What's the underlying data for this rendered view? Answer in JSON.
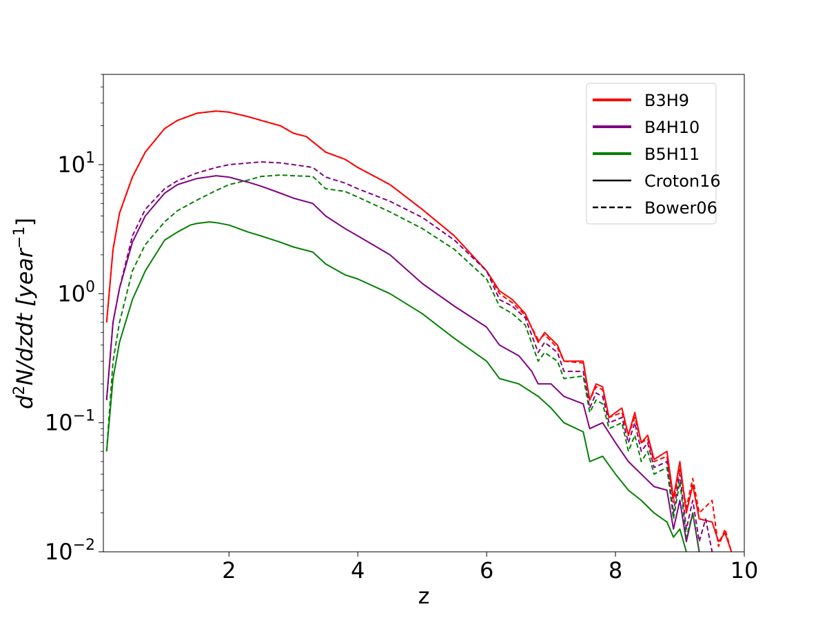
{
  "chart_data": {
    "type": "line",
    "title": "",
    "xlabel": "z",
    "ylabel": "d²N/dzdt [year⁻¹]",
    "ylabel_parts": {
      "d": "d",
      "sup2": "2",
      "mid": "N/dzdt [year",
      "sup": "−1",
      "close": "]"
    },
    "xlim": [
      0.05,
      10
    ],
    "ylim": [
      0.01,
      50
    ],
    "y_scale": "log",
    "grid": false,
    "legend_position": "top-right",
    "x_ticks": [
      {
        "value": 2,
        "label": "2"
      },
      {
        "value": 4,
        "label": "4"
      },
      {
        "value": 6,
        "label": "6"
      },
      {
        "value": 8,
        "label": "8"
      },
      {
        "value": 10,
        "label": "10"
      }
    ],
    "y_ticks": [
      {
        "value": 0.01,
        "base": "10",
        "exp": "−2"
      },
      {
        "value": 0.1,
        "base": "10",
        "exp": "−1"
      },
      {
        "value": 1,
        "base": "10",
        "exp": "0"
      },
      {
        "value": 10,
        "base": "10",
        "exp": "1"
      }
    ],
    "legend": [
      {
        "label": "B3H9",
        "color": "#ff0000",
        "style": "solid",
        "kind": "color"
      },
      {
        "label": "B4H10",
        "color": "#800080",
        "style": "solid",
        "kind": "color"
      },
      {
        "label": "B5H11",
        "color": "#008000",
        "style": "solid",
        "kind": "color"
      },
      {
        "label": "Croton16",
        "color": "#000000",
        "style": "solid",
        "kind": "style"
      },
      {
        "label": "Bower06",
        "color": "#000000",
        "style": "dashed",
        "kind": "style"
      }
    ],
    "series": [
      {
        "model": "B3H9",
        "variant": "Croton16",
        "color": "#ff0000",
        "style": "solid",
        "points": [
          [
            0.1,
            0.6
          ],
          [
            0.2,
            2.2
          ],
          [
            0.3,
            4.2
          ],
          [
            0.5,
            8.0
          ],
          [
            0.7,
            12.5
          ],
          [
            1.0,
            19.0
          ],
          [
            1.2,
            22.0
          ],
          [
            1.5,
            25.0
          ],
          [
            1.8,
            26.0
          ],
          [
            2.0,
            25.5
          ],
          [
            2.3,
            23.5
          ],
          [
            2.5,
            22.0
          ],
          [
            2.8,
            20.0
          ],
          [
            3.0,
            17.5
          ],
          [
            3.2,
            16.5
          ],
          [
            3.5,
            12.5
          ],
          [
            3.8,
            11.0
          ],
          [
            4.0,
            9.5
          ],
          [
            4.5,
            7.0
          ],
          [
            5.0,
            4.5
          ],
          [
            5.5,
            2.8
          ],
          [
            6.0,
            1.5
          ],
          [
            6.2,
            1.05
          ],
          [
            6.4,
            0.9
          ],
          [
            6.6,
            0.7
          ],
          [
            6.8,
            0.42
          ],
          [
            6.9,
            0.5
          ],
          [
            7.1,
            0.4
          ],
          [
            7.2,
            0.3
          ],
          [
            7.5,
            0.3
          ],
          [
            7.6,
            0.15
          ],
          [
            7.7,
            0.2
          ],
          [
            7.8,
            0.19
          ],
          [
            7.9,
            0.11
          ],
          [
            8.1,
            0.13
          ],
          [
            8.2,
            0.08
          ],
          [
            8.3,
            0.12
          ],
          [
            8.4,
            0.07
          ],
          [
            8.5,
            0.08
          ],
          [
            8.6,
            0.052
          ],
          [
            8.8,
            0.06
          ],
          [
            8.9,
            0.026
          ],
          [
            9.0,
            0.05
          ],
          [
            9.1,
            0.02
          ],
          [
            9.2,
            0.033
          ],
          [
            9.3,
            0.018
          ],
          [
            9.5,
            0.017
          ],
          [
            9.6,
            0.012
          ],
          [
            9.7,
            0.014
          ],
          [
            9.8,
            0.01
          ]
        ]
      },
      {
        "model": "B3H9",
        "variant": "Bower06",
        "color": "#ff0000",
        "style": "dashed",
        "points": [
          [
            0.1,
            0.6
          ],
          [
            0.2,
            2.2
          ],
          [
            0.3,
            4.2
          ],
          [
            0.5,
            8.0
          ],
          [
            0.7,
            12.5
          ],
          [
            1.0,
            19.0
          ],
          [
            1.2,
            22.0
          ],
          [
            1.5,
            25.0
          ],
          [
            1.8,
            26.0
          ],
          [
            2.0,
            25.5
          ],
          [
            2.3,
            23.5
          ],
          [
            2.5,
            22.0
          ],
          [
            2.8,
            20.0
          ],
          [
            3.0,
            17.5
          ],
          [
            3.2,
            16.5
          ],
          [
            3.5,
            12.5
          ],
          [
            3.8,
            11.0
          ],
          [
            4.0,
            9.5
          ],
          [
            4.5,
            7.0
          ],
          [
            5.0,
            4.5
          ],
          [
            5.5,
            2.8
          ],
          [
            6.0,
            1.5
          ],
          [
            6.2,
            1.0
          ],
          [
            6.4,
            0.85
          ],
          [
            6.6,
            0.68
          ],
          [
            6.8,
            0.44
          ],
          [
            6.9,
            0.48
          ],
          [
            7.1,
            0.38
          ],
          [
            7.2,
            0.3
          ],
          [
            7.5,
            0.29
          ],
          [
            7.6,
            0.15
          ],
          [
            7.7,
            0.19
          ],
          [
            7.8,
            0.18
          ],
          [
            7.9,
            0.11
          ],
          [
            8.1,
            0.12
          ],
          [
            8.2,
            0.08
          ],
          [
            8.3,
            0.11
          ],
          [
            8.4,
            0.07
          ],
          [
            8.5,
            0.075
          ],
          [
            8.6,
            0.05
          ],
          [
            8.8,
            0.055
          ],
          [
            8.9,
            0.024
          ],
          [
            9.0,
            0.045
          ],
          [
            9.1,
            0.022
          ],
          [
            9.2,
            0.037
          ],
          [
            9.3,
            0.02
          ],
          [
            9.5,
            0.025
          ],
          [
            9.6,
            0.011
          ],
          [
            9.7,
            0.015
          ],
          [
            9.8,
            0.01
          ]
        ]
      },
      {
        "model": "B4H10",
        "variant": "Croton16",
        "color": "#800080",
        "style": "solid",
        "points": [
          [
            0.1,
            0.15
          ],
          [
            0.2,
            0.6
          ],
          [
            0.3,
            1.1
          ],
          [
            0.5,
            2.5
          ],
          [
            0.7,
            4.0
          ],
          [
            1.0,
            6.0
          ],
          [
            1.2,
            7.0
          ],
          [
            1.5,
            7.8
          ],
          [
            1.8,
            8.2
          ],
          [
            2.0,
            8.0
          ],
          [
            2.3,
            7.3
          ],
          [
            2.5,
            6.8
          ],
          [
            2.8,
            6.0
          ],
          [
            3.0,
            5.5
          ],
          [
            3.3,
            5.0
          ],
          [
            3.5,
            4.0
          ],
          [
            3.8,
            3.2
          ],
          [
            4.0,
            2.8
          ],
          [
            4.5,
            2.0
          ],
          [
            5.0,
            1.2
          ],
          [
            5.5,
            0.8
          ],
          [
            6.0,
            0.55
          ],
          [
            6.2,
            0.4
          ],
          [
            6.5,
            0.33
          ],
          [
            6.7,
            0.25
          ],
          [
            6.8,
            0.2
          ],
          [
            7.0,
            0.2
          ],
          [
            7.2,
            0.16
          ],
          [
            7.5,
            0.14
          ],
          [
            7.6,
            0.09
          ],
          [
            7.8,
            0.1
          ],
          [
            8.0,
            0.07
          ],
          [
            8.2,
            0.05
          ],
          [
            8.4,
            0.04
          ],
          [
            8.6,
            0.032
          ],
          [
            8.8,
            0.03
          ],
          [
            8.9,
            0.015
          ],
          [
            9.0,
            0.025
          ],
          [
            9.1,
            0.012
          ],
          [
            9.2,
            0.02
          ],
          [
            9.3,
            0.01
          ]
        ]
      },
      {
        "model": "B4H10",
        "variant": "Bower06",
        "color": "#800080",
        "style": "dashed",
        "points": [
          [
            0.1,
            0.15
          ],
          [
            0.2,
            0.6
          ],
          [
            0.3,
            1.1
          ],
          [
            0.5,
            2.8
          ],
          [
            0.7,
            4.5
          ],
          [
            1.0,
            6.5
          ],
          [
            1.2,
            7.5
          ],
          [
            1.5,
            8.6
          ],
          [
            1.8,
            9.5
          ],
          [
            2.0,
            10.0
          ],
          [
            2.5,
            10.5
          ],
          [
            2.8,
            10.3
          ],
          [
            3.0,
            10.0
          ],
          [
            3.3,
            9.5
          ],
          [
            3.5,
            8.0
          ],
          [
            3.8,
            7.2
          ],
          [
            4.0,
            6.5
          ],
          [
            4.5,
            5.2
          ],
          [
            5.0,
            3.9
          ],
          [
            5.5,
            2.6
          ],
          [
            6.0,
            1.5
          ],
          [
            6.2,
            0.9
          ],
          [
            6.4,
            0.8
          ],
          [
            6.6,
            0.65
          ],
          [
            6.8,
            0.35
          ],
          [
            6.9,
            0.42
          ],
          [
            7.1,
            0.35
          ],
          [
            7.2,
            0.25
          ],
          [
            7.5,
            0.25
          ],
          [
            7.6,
            0.13
          ],
          [
            7.7,
            0.17
          ],
          [
            7.8,
            0.16
          ],
          [
            7.9,
            0.1
          ],
          [
            8.1,
            0.11
          ],
          [
            8.2,
            0.07
          ],
          [
            8.3,
            0.1
          ],
          [
            8.4,
            0.06
          ],
          [
            8.5,
            0.07
          ],
          [
            8.6,
            0.045
          ],
          [
            8.8,
            0.05
          ],
          [
            8.9,
            0.02
          ],
          [
            9.0,
            0.04
          ],
          [
            9.1,
            0.015
          ],
          [
            9.2,
            0.025
          ],
          [
            9.3,
            0.012
          ],
          [
            9.4,
            0.018
          ],
          [
            9.5,
            0.01
          ]
        ]
      },
      {
        "model": "B5H11",
        "variant": "Croton16",
        "color": "#008000",
        "style": "solid",
        "points": [
          [
            0.1,
            0.06
          ],
          [
            0.2,
            0.22
          ],
          [
            0.3,
            0.42
          ],
          [
            0.5,
            0.9
          ],
          [
            0.7,
            1.5
          ],
          [
            1.0,
            2.6
          ],
          [
            1.2,
            3.0
          ],
          [
            1.4,
            3.4
          ],
          [
            1.5,
            3.5
          ],
          [
            1.7,
            3.6
          ],
          [
            1.8,
            3.55
          ],
          [
            2.0,
            3.4
          ],
          [
            2.3,
            3.0
          ],
          [
            2.5,
            2.8
          ],
          [
            2.8,
            2.5
          ],
          [
            3.0,
            2.3
          ],
          [
            3.3,
            2.1
          ],
          [
            3.5,
            1.7
          ],
          [
            3.8,
            1.4
          ],
          [
            4.0,
            1.3
          ],
          [
            4.5,
            1.0
          ],
          [
            5.0,
            0.7
          ],
          [
            5.5,
            0.45
          ],
          [
            6.0,
            0.3
          ],
          [
            6.2,
            0.22
          ],
          [
            6.5,
            0.2
          ],
          [
            6.8,
            0.16
          ],
          [
            7.0,
            0.13
          ],
          [
            7.2,
            0.1
          ],
          [
            7.5,
            0.085
          ],
          [
            7.6,
            0.05
          ],
          [
            7.8,
            0.055
          ],
          [
            8.0,
            0.04
          ],
          [
            8.2,
            0.03
          ],
          [
            8.4,
            0.025
          ],
          [
            8.6,
            0.02
          ],
          [
            8.8,
            0.017
          ],
          [
            8.9,
            0.013
          ],
          [
            9.0,
            0.015
          ],
          [
            9.1,
            0.01
          ]
        ]
      },
      {
        "model": "B5H11",
        "variant": "Bower06",
        "color": "#008000",
        "style": "dashed",
        "points": [
          [
            0.1,
            0.06
          ],
          [
            0.2,
            0.3
          ],
          [
            0.3,
            0.6
          ],
          [
            0.5,
            1.5
          ],
          [
            0.7,
            2.4
          ],
          [
            1.0,
            3.6
          ],
          [
            1.2,
            4.4
          ],
          [
            1.5,
            5.3
          ],
          [
            1.8,
            6.3
          ],
          [
            2.0,
            7.0
          ],
          [
            2.3,
            7.6
          ],
          [
            2.5,
            8.1
          ],
          [
            2.8,
            8.3
          ],
          [
            3.0,
            8.2
          ],
          [
            3.3,
            8.1
          ],
          [
            3.5,
            6.5
          ],
          [
            3.8,
            6.2
          ],
          [
            4.0,
            5.6
          ],
          [
            4.5,
            4.3
          ],
          [
            5.0,
            3.2
          ],
          [
            5.5,
            2.2
          ],
          [
            6.0,
            1.3
          ],
          [
            6.2,
            0.8
          ],
          [
            6.4,
            0.7
          ],
          [
            6.6,
            0.57
          ],
          [
            6.8,
            0.3
          ],
          [
            6.9,
            0.35
          ],
          [
            7.1,
            0.3
          ],
          [
            7.2,
            0.22
          ],
          [
            7.5,
            0.23
          ],
          [
            7.6,
            0.12
          ],
          [
            7.7,
            0.15
          ],
          [
            7.8,
            0.14
          ],
          [
            7.9,
            0.09
          ],
          [
            8.1,
            0.1
          ],
          [
            8.2,
            0.06
          ],
          [
            8.3,
            0.08
          ],
          [
            8.4,
            0.05
          ],
          [
            8.5,
            0.06
          ],
          [
            8.6,
            0.04
          ],
          [
            8.8,
            0.045
          ],
          [
            8.9,
            0.018
          ],
          [
            9.0,
            0.035
          ],
          [
            9.1,
            0.013
          ],
          [
            9.2,
            0.02
          ],
          [
            9.3,
            0.01
          ]
        ]
      }
    ]
  }
}
